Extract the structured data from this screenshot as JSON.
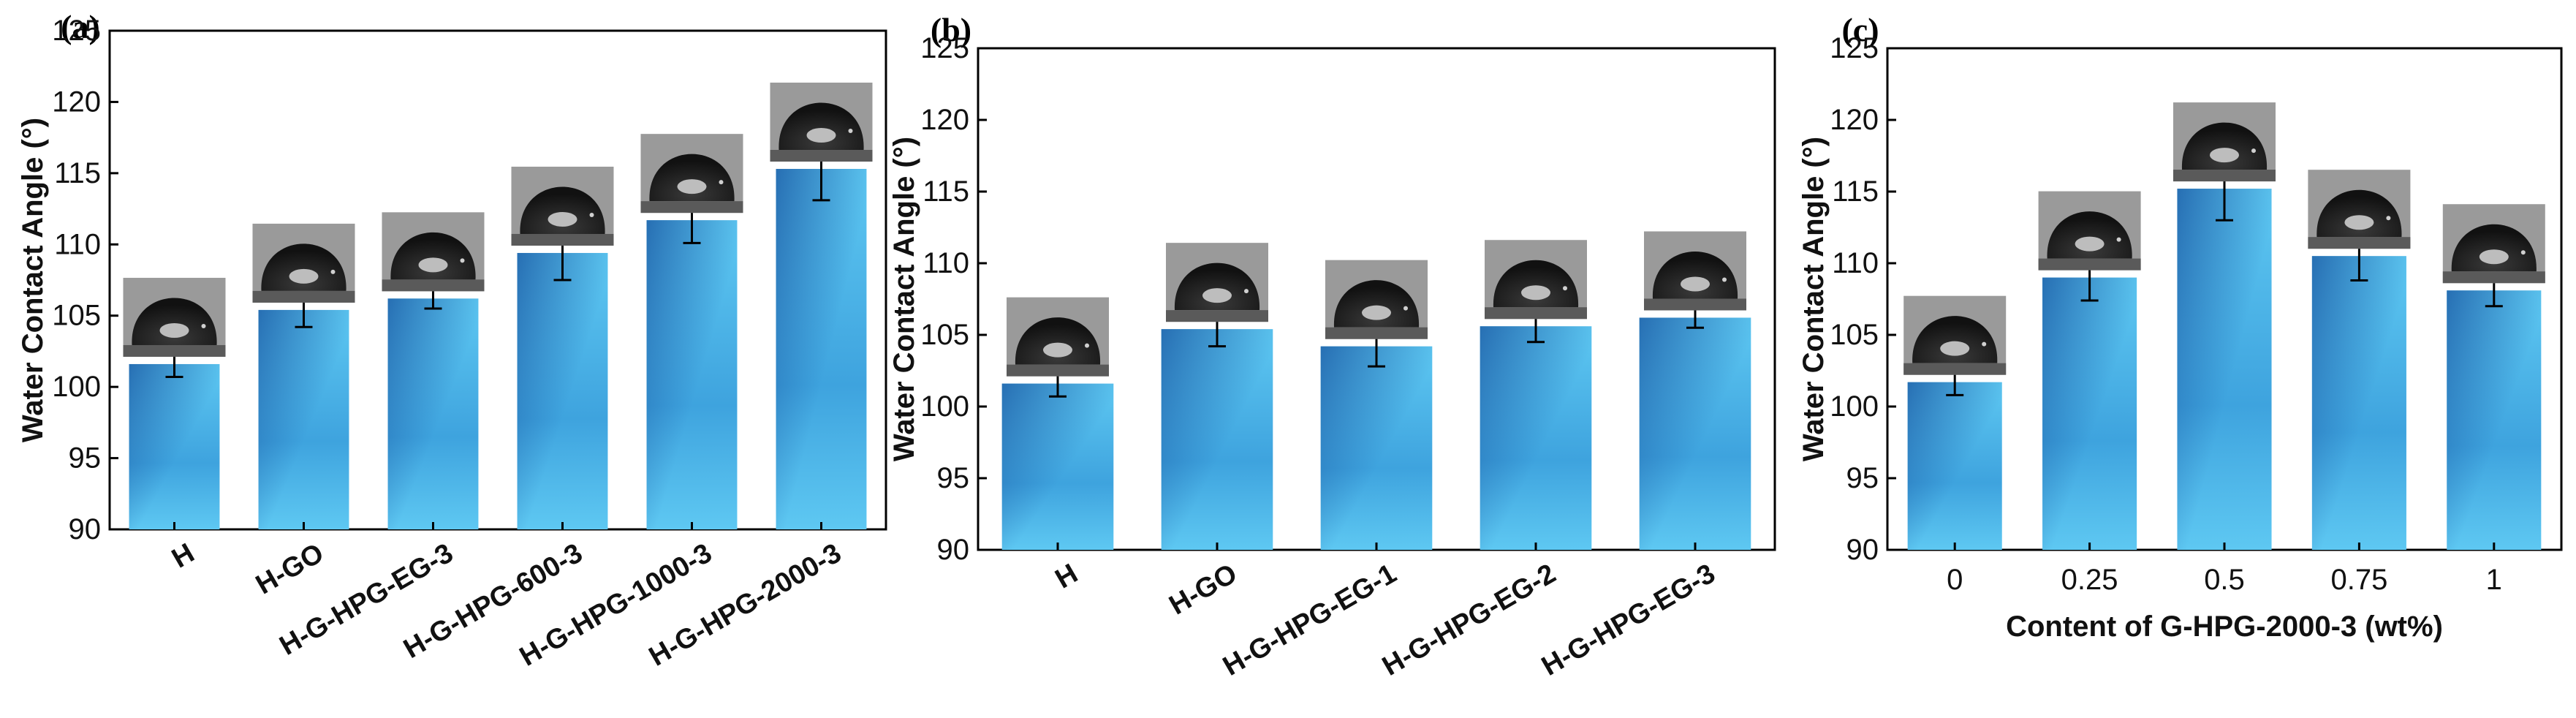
{
  "colors": {
    "bar_top": "#5ec8f2",
    "bar_mid": "#3ea3de",
    "bar_dark": "#1d5fa8",
    "drop_bg": "#9a9a9a",
    "drop_body": "#111111",
    "axis": "#000000",
    "errorbar": "#000000"
  },
  "chart_data": [
    {
      "type": "bar",
      "panel_label": "(a)",
      "ylabel": "Water Contact Angle (°)",
      "xlabel": "",
      "ylim": [
        90,
        125
      ],
      "yticks": [
        90,
        95,
        100,
        105,
        110,
        115,
        120,
        125
      ],
      "categories": [
        "H",
        "H-GO",
        "H-G-HPG-EG-3",
        "H-G-HPG-600-3",
        "H-G-HPG-1000-3",
        "H-G-HPG-2000-3"
      ],
      "values": [
        101.6,
        105.4,
        106.2,
        109.4,
        111.7,
        115.3
      ],
      "errors": [
        0.9,
        1.2,
        0.7,
        1.9,
        1.6,
        2.2
      ],
      "rotated_labels": true,
      "grid": false
    },
    {
      "type": "bar",
      "panel_label": "(b)",
      "ylabel": "Water Contact Angle (°)",
      "xlabel": "",
      "ylim": [
        90,
        125
      ],
      "yticks": [
        90,
        95,
        100,
        105,
        110,
        115,
        120,
        125
      ],
      "categories": [
        "H",
        "H-GO",
        "H-G-HPG-EG-1",
        "H-G-HPG-EG-2",
        "H-G-HPG-EG-3"
      ],
      "values": [
        101.6,
        105.4,
        104.2,
        105.6,
        106.2
      ],
      "errors": [
        0.9,
        1.2,
        1.4,
        1.1,
        0.7
      ],
      "rotated_labels": true,
      "grid": false
    },
    {
      "type": "bar",
      "panel_label": "(c)",
      "ylabel": "Water Contact Angle (°)",
      "xlabel": "Content of G-HPG-2000-3 (wt%)",
      "ylim": [
        90,
        125
      ],
      "yticks": [
        90,
        95,
        100,
        105,
        110,
        115,
        120,
        125
      ],
      "categories": [
        "0",
        "0.25",
        "0.5",
        "0.75",
        "1"
      ],
      "values": [
        101.7,
        109.0,
        115.2,
        110.5,
        108.1
      ],
      "errors": [
        0.9,
        1.6,
        2.2,
        1.7,
        1.1
      ],
      "rotated_labels": false,
      "grid": false
    }
  ]
}
